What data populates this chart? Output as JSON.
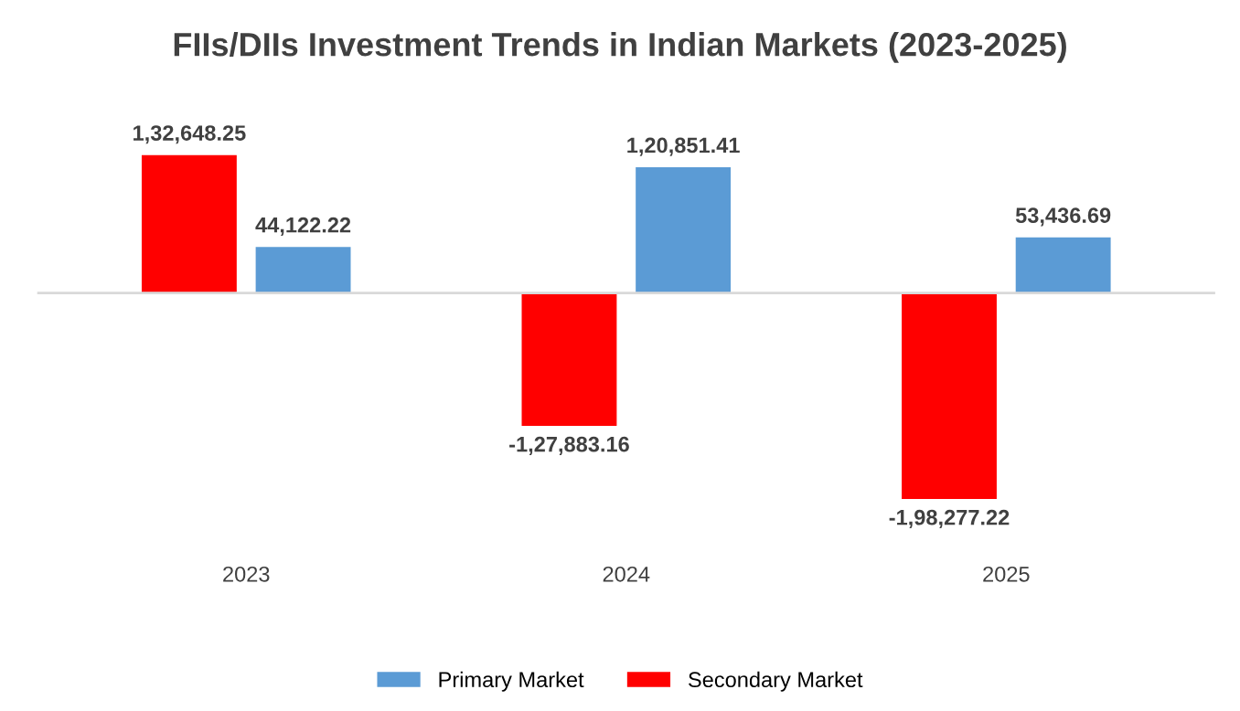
{
  "chart_data": {
    "type": "bar",
    "title": "FIIs/DIIs Investment Trends in Indian Markets (2023-2025)",
    "categories": [
      "2023",
      "2024",
      "2025"
    ],
    "series": [
      {
        "name": "Secondary Market",
        "color": "#ff0000",
        "values": [
          132648.25,
          -127883.16,
          -198277.22
        ],
        "value_labels": [
          "1,32,648.25",
          "-1,27,883.16",
          "-1,98,277.22"
        ]
      },
      {
        "name": "Primary Market",
        "color": "#5b9bd5",
        "values": [
          44122.22,
          120851.41,
          53436.69
        ],
        "value_labels": [
          "44,122.22",
          "1,20,851.41",
          "53,436.69"
        ]
      }
    ],
    "legend": "bottom"
  }
}
